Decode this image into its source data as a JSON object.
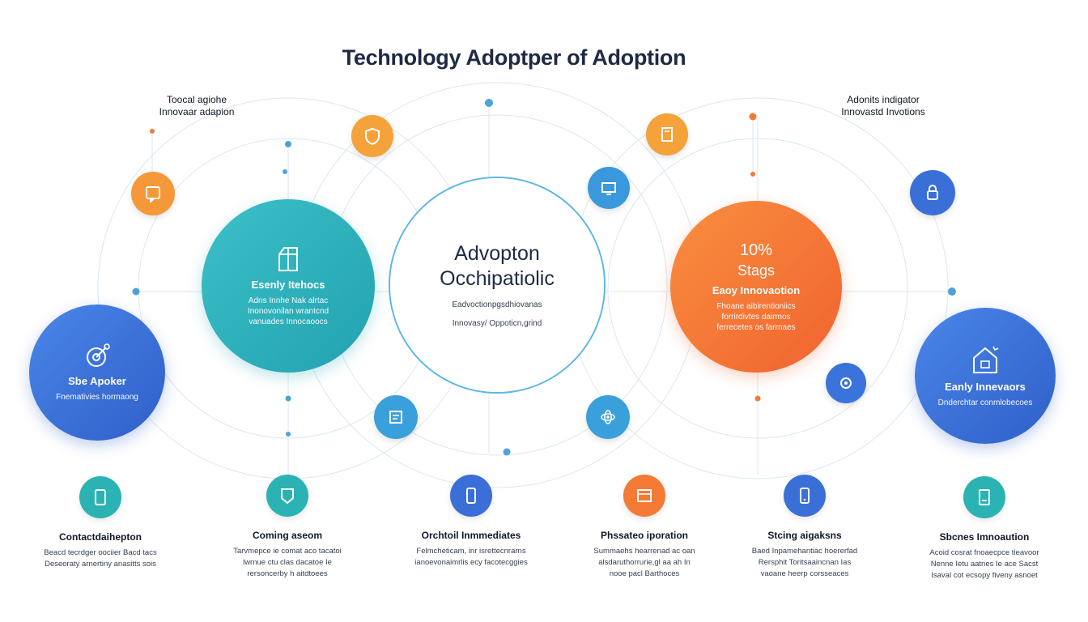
{
  "title": "Technology Adoptper of Adoption",
  "corner_left": {
    "line1": "Toocal agiohe",
    "line2": "Innovaar adapion"
  },
  "corner_right": {
    "line1": "Adonits indigator",
    "line2": "Innovastd Invotions"
  },
  "center": {
    "line1": "Advopton",
    "line2": "Occhipatiolic",
    "desc1": "Eadvoctionpgsdhiovanas",
    "desc2": "Innovasy/ Oppoticn,grind"
  },
  "big_circles": [
    {
      "title": "Sbe Apoker",
      "desc": [
        "Fnemativies hormaong"
      ],
      "icon": "target-icon",
      "color": "#3a6fd8"
    },
    {
      "title": "Esenly Itehocs",
      "desc": [
        "Adns Innhe Nak alrtac",
        "Inonovonilan wrantcnd",
        "vanuades Innocaoocs"
      ],
      "icon": "box-icon",
      "color": "#2ab0b8"
    },
    {
      "title": "Eaoy Innovaotion",
      "desc": [
        "Fhoane aibirentioniics",
        "forrirdivtes dairmos",
        "ferrecetes os farrnaes"
      ],
      "stat1": "10%",
      "stat2": "Stags",
      "icon": "chart-icon",
      "color": "#f47a35"
    },
    {
      "title": "Eanly Innevaors",
      "desc": [
        "Dnderchtar conmlobecoes"
      ],
      "icon": "house-icon",
      "color": "#3a73dc"
    }
  ],
  "cards": [
    {
      "title": "Contactdaihepton",
      "desc": [
        "Beacd tecrdger oociier Bacd tacs",
        "Deseoraty arnertiny anasitts sois"
      ],
      "icon": "tablet-icon",
      "color": "#2bb3b3"
    },
    {
      "title": "Coming aseom",
      "desc": [
        "Tarvmepce ie comat aco tacatoi",
        "lwrnue ctu clas dacatoe Ie",
        "rersoncerby h aitdtoees"
      ],
      "icon": "badge-icon",
      "color": "#2bb3b3"
    },
    {
      "title": "Orchtoil Inmmediates",
      "desc": [
        "Felmcheticam, inr isrettecnrarns",
        "ianoevonaimrlis ecy facotecggies"
      ],
      "icon": "phone-icon",
      "color": "#3a6fd8"
    },
    {
      "title": "Phssateo iporation",
      "desc": [
        "Summaehs hearrenad ac oan",
        "alsdaruthorrurie,gl aa ah In",
        "nooe pacl Barthoces"
      ],
      "icon": "window-icon",
      "color": "#f47a35"
    },
    {
      "title": "Stcing aigaksns",
      "desc": [
        "Baed Inpamehantiac hoererfad",
        "Rersphit Toritsaaincnan Ias",
        "vaoane heerp corsseaces"
      ],
      "icon": "phone-blue-icon",
      "color": "#3a6fd8"
    },
    {
      "title": "Sbcnes Imnoaution",
      "desc": [
        "Acoid cosrat fnoaecpce tieavoor",
        "Nenne Ietu aatnes Ie ace Sacst",
        "Isaval cot ecsopy fiveny asnoet"
      ],
      "icon": "doc-icon",
      "color": "#2bb3b3"
    }
  ],
  "satellites": [
    {
      "icon": "chat-icon",
      "color": "#f5a23a"
    },
    {
      "icon": "shield-icon",
      "color": "#f5a23a"
    },
    {
      "icon": "book-icon",
      "color": "#f5a23a"
    },
    {
      "icon": "screen-icon",
      "color": "#3a98dc"
    },
    {
      "icon": "lock-icon",
      "color": "#3a6fd8"
    },
    {
      "icon": "tag-icon",
      "color": "#3a73dc"
    },
    {
      "icon": "device-icon",
      "color": "#3aa0dc"
    },
    {
      "icon": "atom-icon",
      "color": "#3aa0dc"
    }
  ]
}
